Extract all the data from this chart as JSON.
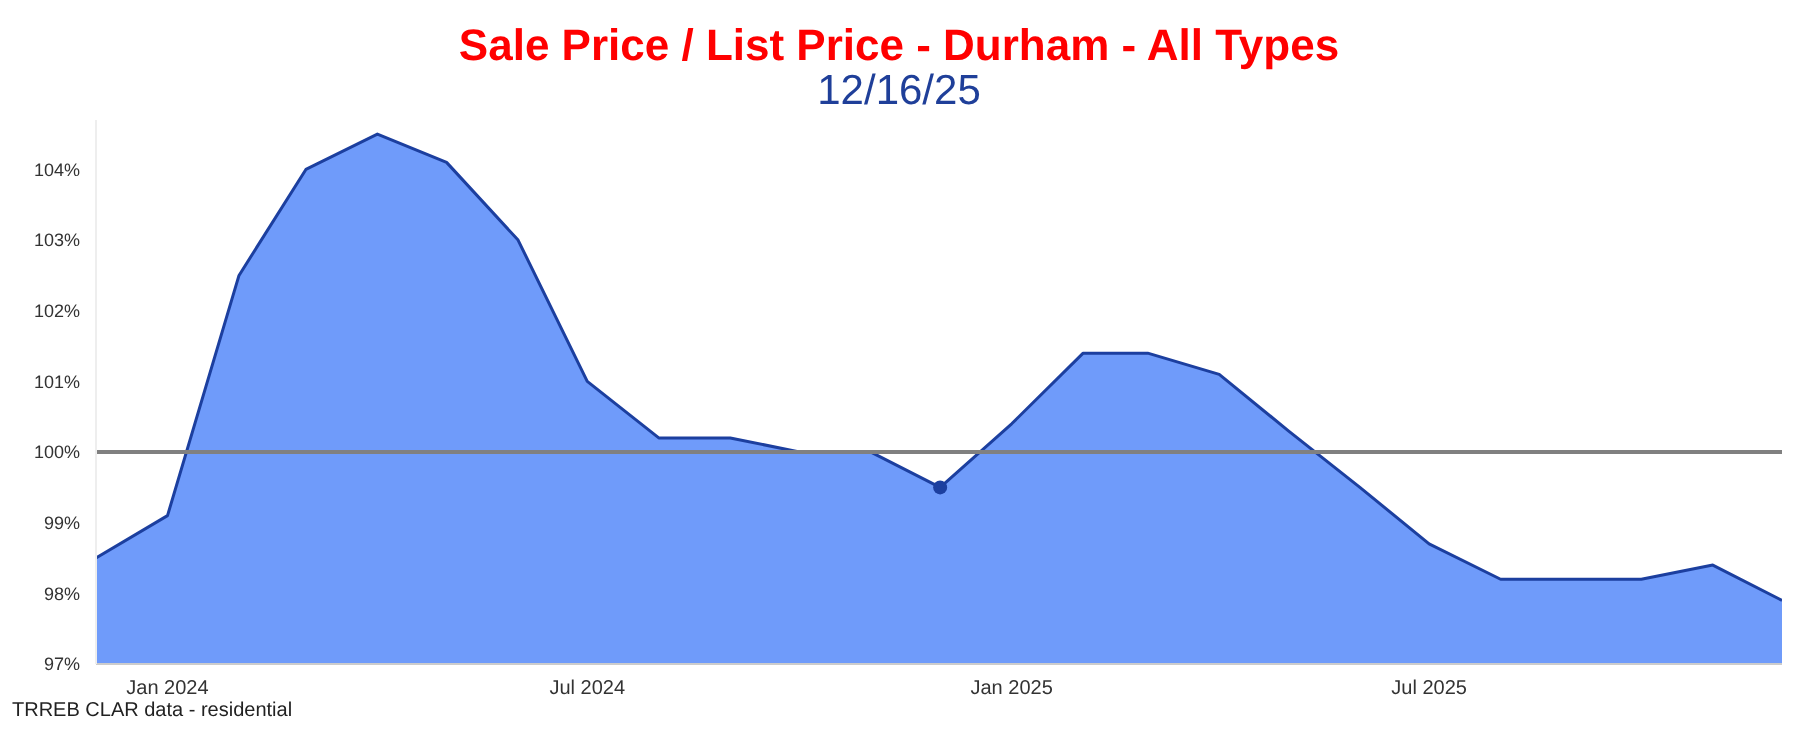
{
  "chart_data": {
    "type": "area",
    "title": "Sale Price / List Price - Durham - All Types",
    "subtitle": "12/16/25",
    "x": [
      "2023-12",
      "2024-01",
      "2024-02",
      "2024-03",
      "2024-04",
      "2024-05",
      "2024-06",
      "2024-07",
      "2024-08",
      "2024-09",
      "2024-10",
      "2024-11",
      "2024-12",
      "2025-01",
      "2025-02",
      "2025-03",
      "2025-04",
      "2025-05",
      "2025-06",
      "2025-07",
      "2025-08",
      "2025-09",
      "2025-10",
      "2025-11",
      "2025-12"
    ],
    "series": [
      {
        "color": "#6f9bfa",
        "values": [
          98.5,
          99.1,
          102.5,
          104.0,
          104.5,
          104.1,
          103.0,
          101.0,
          100.2,
          100.2,
          100.0,
          100.0,
          99.5,
          100.4,
          101.4,
          101.4,
          101.1,
          100.3,
          99.5,
          98.7,
          98.2,
          98.2,
          98.2,
          98.4,
          97.9
        ]
      },
      {
        "type": "scatter",
        "color": "#1c3f9f",
        "x": [
          "2024-12"
        ],
        "values": [
          99.5
        ]
      }
    ],
    "xlim": [
      "2023-12",
      "2025-12"
    ],
    "xticks": [
      {
        "value": "2024-01",
        "label": "Jan 2024"
      },
      {
        "value": "2024-07",
        "label": "Jul 2024"
      },
      {
        "value": "2025-01",
        "label": "Jan 2025"
      },
      {
        "value": "2025-07",
        "label": "Jul 2025"
      }
    ],
    "ylim": [
      97,
      104.7
    ],
    "yticks": [
      {
        "value": 97,
        "label": "97%"
      },
      {
        "value": 98,
        "label": "98%"
      },
      {
        "value": 99,
        "label": "99%"
      },
      {
        "value": 100,
        "label": "100%"
      },
      {
        "value": 101,
        "label": "101%"
      },
      {
        "value": 102,
        "label": "102%"
      },
      {
        "value": 103,
        "label": "103%"
      },
      {
        "value": 104,
        "label": "104%"
      }
    ],
    "ref_lines": [
      {
        "axis": "y",
        "value": 100,
        "color": "#808080"
      }
    ],
    "annotations": [
      "TRREB CLAR data - residential"
    ],
    "grid": false,
    "legend": false
  }
}
